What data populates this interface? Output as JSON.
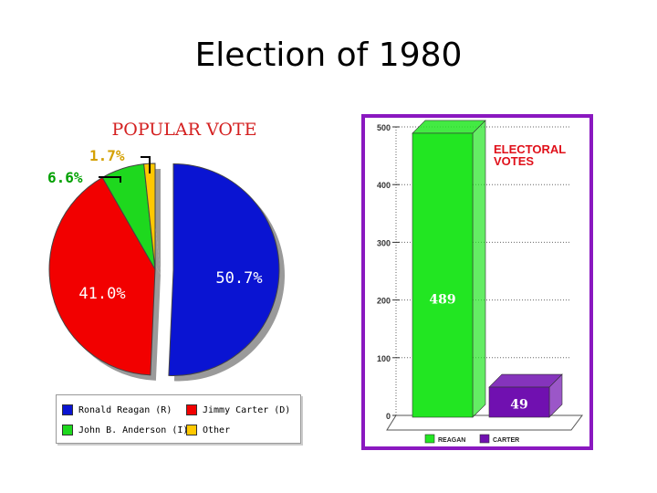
{
  "slide": {
    "title": "Election of 1980"
  },
  "chart_data": [
    {
      "type": "pie",
      "title": "POPULAR VOTE",
      "slices": [
        {
          "label": "Ronald Reagan (R)",
          "value": 50.7,
          "display": "50.7%",
          "color": "#0a14d2",
          "exploded": true
        },
        {
          "label": "Jimmy Carter (D)",
          "value": 41.0,
          "display": "41.0%",
          "color": "#f20000"
        },
        {
          "label": "John B. Anderson (I)",
          "value": 6.6,
          "display": "6.6%",
          "color": "#1ed81e"
        },
        {
          "label": "Other",
          "value": 1.7,
          "display": "1.7%",
          "color": "#ffc800"
        }
      ],
      "legend": "bottom",
      "label_colors": {
        "6.6%": "#00a000",
        "1.7%": "#d4a000",
        "41.0%": "#ffffff",
        "50.7%": "#ffffff"
      }
    },
    {
      "type": "bar",
      "title": "ELECTORAL VOTES",
      "categories": [
        "REAGAN",
        "CARTER"
      ],
      "values": [
        489,
        49
      ],
      "data_labels": [
        "489",
        "49"
      ],
      "colors": [
        "#22e622",
        "#7010b0"
      ],
      "ylim": [
        0,
        500
      ],
      "yticks": [
        0,
        100,
        200,
        300,
        400,
        500
      ],
      "ytick_labels": [
        "0",
        "100",
        "200",
        "300",
        "400",
        "500"
      ],
      "grid": true,
      "frame_color": "#8a18c0",
      "title_color": "#e0101a"
    }
  ]
}
